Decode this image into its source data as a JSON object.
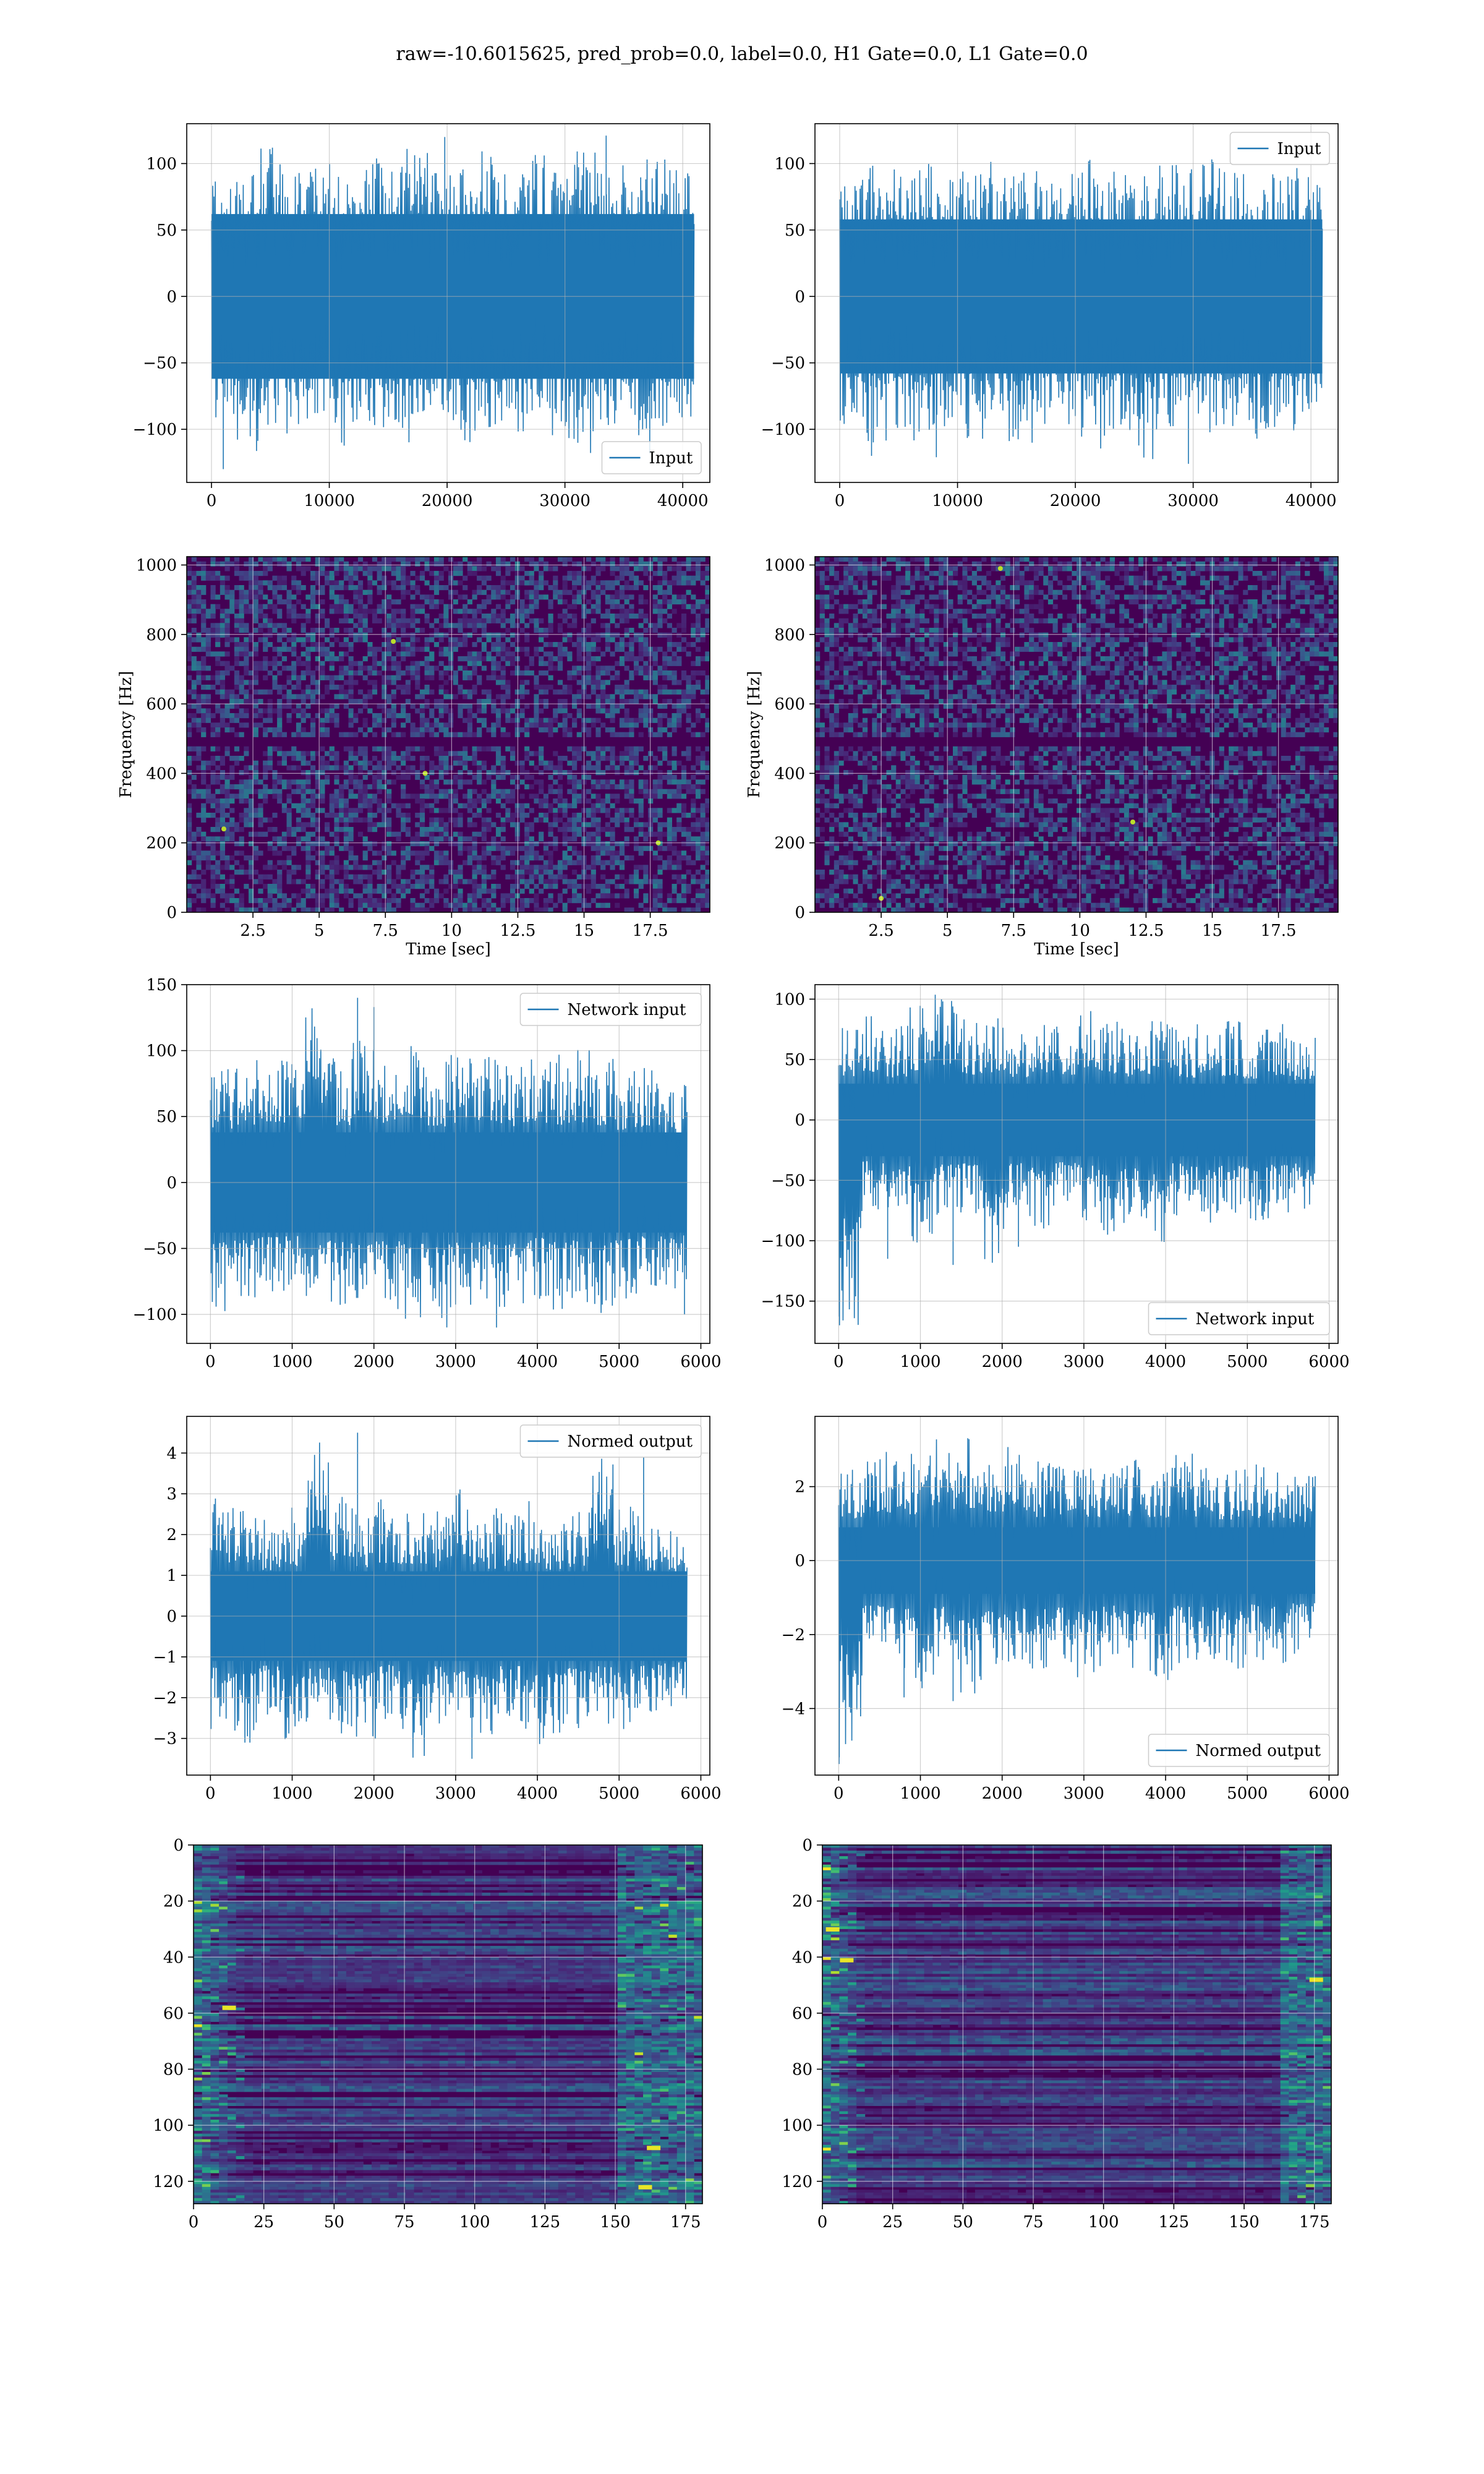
{
  "figure": {
    "suptitle": "raw=-10.6015625, pred_prob=0.0, label=0.0, H1 Gate=0.0, L1 Gate=0.0"
  },
  "colors": {
    "line": "#1f77b4",
    "grid": "#b0b0b0",
    "axes_edge": "#000000",
    "viridis_dark": "#440154",
    "viridis_mid": "#21918c",
    "viridis_light": "#fde725"
  },
  "chart_data": [
    {
      "id": "h1-input",
      "type": "line",
      "title": "",
      "xlabel": "",
      "ylabel": "",
      "xlim": [
        -2100,
        42300
      ],
      "ylim": [
        -140,
        130
      ],
      "xticks": [
        0,
        10000,
        20000,
        30000,
        40000
      ],
      "yticks": [
        -100,
        -50,
        0,
        50,
        100
      ],
      "grid": true,
      "legend_position": "lower right",
      "series": [
        {
          "name": "Input",
          "x_range": [
            0,
            40960
          ],
          "n_points": 40960,
          "band": [
            -62,
            62
          ],
          "envelope_max": [
            88,
            98,
            112,
            95,
            104,
            93,
            110,
            99,
            118,
            95,
            102,
            113,
            97,
            108,
            94,
            120,
            99,
            105,
            115,
            98
          ],
          "envelope_min": [
            -92,
            -120,
            -100,
            -108,
            -90,
            -114,
            -97,
            -105,
            -111,
            -95,
            -110,
            -99,
            -104,
            -94,
            -108,
            -118,
            -97,
            -106,
            -100,
            -93
          ],
          "outliers": [
            [
              1000,
              -130
            ],
            [
              19800,
              120
            ],
            [
              33500,
              121
            ],
            [
              37200,
              -118
            ]
          ]
        }
      ]
    },
    {
      "id": "l1-input",
      "type": "line",
      "title": "",
      "xlabel": "",
      "ylabel": "",
      "xlim": [
        -2100,
        42300
      ],
      "ylim": [
        -140,
        130
      ],
      "xticks": [
        0,
        10000,
        20000,
        30000,
        40000
      ],
      "yticks": [
        -100,
        -50,
        0,
        50,
        100
      ],
      "grid": true,
      "legend_position": "upper right",
      "series": [
        {
          "name": "Input",
          "x_range": [
            0,
            40960
          ],
          "n_points": 40960,
          "band": [
            -58,
            58
          ],
          "envelope_max": [
            92,
            100,
            96,
            104,
            90,
            98,
            103,
            95,
            100,
            94,
            106,
            99,
            93,
            101,
            97,
            104,
            96,
            92,
            98,
            90
          ],
          "envelope_min": [
            -96,
            -110,
            -100,
            -118,
            -98,
            -108,
            -95,
            -112,
            -101,
            -97,
            -115,
            -104,
            -123,
            -110,
            -99,
            -105,
            -98,
            -108,
            -101,
            -95
          ],
          "outliers": [
            [
              2700,
              -120
            ],
            [
              8200,
              -121
            ],
            [
              29600,
              -126
            ]
          ]
        }
      ]
    },
    {
      "id": "h1-spectrogram",
      "type": "heatmap",
      "title": "",
      "xlabel": "Time [sec]",
      "ylabel": "Frequency [Hz]",
      "xlim": [
        0.0,
        19.75
      ],
      "ylim": [
        0,
        1024
      ],
      "xticks": [
        2.5,
        5.0,
        7.5,
        10.0,
        12.5,
        15.0,
        17.5
      ],
      "yticks": [
        0,
        200,
        400,
        600,
        800,
        1000
      ],
      "grid": true,
      "colormap": "viridis",
      "features": {
        "dark_band_hz": [
          475,
          505
        ],
        "hot_spots": [
          [
            7.8,
            780
          ],
          [
            17.8,
            200
          ],
          [
            9.0,
            400
          ],
          [
            1.4,
            240
          ]
        ]
      }
    },
    {
      "id": "l1-spectrogram",
      "type": "heatmap",
      "title": "",
      "xlabel": "Time [sec]",
      "ylabel": "Frequency [Hz]",
      "xlim": [
        0.0,
        19.75
      ],
      "ylim": [
        0,
        1024
      ],
      "xticks": [
        2.5,
        5.0,
        7.5,
        10.0,
        12.5,
        15.0,
        17.5
      ],
      "yticks": [
        0,
        200,
        400,
        600,
        800,
        1000
      ],
      "grid": true,
      "colormap": "viridis",
      "features": {
        "dark_band_hz": [
          475,
          505
        ],
        "hot_spots": [
          [
            2.5,
            40
          ],
          [
            7.0,
            990
          ],
          [
            12.0,
            260
          ]
        ]
      }
    },
    {
      "id": "h1-network-input",
      "type": "line",
      "title": "",
      "xlabel": "",
      "ylabel": "",
      "xlim": [
        -290,
        6110
      ],
      "ylim": [
        -122,
        150
      ],
      "xticks": [
        0,
        1000,
        2000,
        3000,
        4000,
        5000,
        6000
      ],
      "yticks": [
        -100,
        -50,
        0,
        50,
        100,
        150
      ],
      "grid": true,
      "legend_position": "upper right",
      "series": [
        {
          "name": "Network input",
          "x_range": [
            0,
            5830
          ],
          "n_points": 5830,
          "band": [
            -38,
            38
          ],
          "envelope_max": [
            88,
            95,
            102,
            98,
            140,
            96,
            108,
            99,
            104,
            92,
            97,
            106,
            94,
            100,
            97,
            101,
            95,
            86,
            92,
            74
          ],
          "envelope_min": [
            -100,
            -92,
            -90,
            -88,
            -95,
            -96,
            -93,
            -99,
            -105,
            -110,
            -98,
            -95,
            -104,
            -92,
            -100,
            -95,
            -102,
            -90,
            -88,
            -84
          ],
          "outliers": [
            [
              1800,
              140
            ],
            [
              2000,
              133
            ],
            [
              3500,
              -110
            ],
            [
              5800,
              -100
            ]
          ]
        }
      ]
    },
    {
      "id": "l1-network-input",
      "type": "line",
      "title": "",
      "xlabel": "",
      "ylabel": "",
      "xlim": [
        -290,
        6110
      ],
      "ylim": [
        -185,
        112
      ],
      "xticks": [
        0,
        1000,
        2000,
        3000,
        4000,
        5000,
        6000
      ],
      "yticks": [
        -150,
        -100,
        -50,
        0,
        50,
        100
      ],
      "grid": true,
      "legend_position": "lower right",
      "series": [
        {
          "name": "Network input",
          "x_range": [
            0,
            5830
          ],
          "n_points": 5830,
          "band": [
            -30,
            30
          ],
          "envelope_max": [
            80,
            90,
            78,
            95,
            108,
            85,
            88,
            76,
            90,
            82,
            95,
            84,
            80,
            86,
            78,
            90,
            82,
            75,
            80,
            70
          ],
          "envelope_min": [
            -170,
            -75,
            -85,
            -118,
            -82,
            -78,
            -122,
            -80,
            -90,
            -78,
            -84,
            -95,
            -82,
            -105,
            -80,
            -86,
            -82,
            -90,
            -84,
            -80
          ],
          "outliers": [
            [
              10,
              -170
            ],
            [
              600,
              -115
            ],
            [
              1400,
              -120
            ],
            [
              2200,
              -105
            ]
          ]
        }
      ]
    },
    {
      "id": "h1-normed-output",
      "type": "line",
      "title": "",
      "xlabel": "",
      "ylabel": "",
      "xlim": [
        -290,
        6110
      ],
      "ylim": [
        -3.9,
        4.9
      ],
      "xticks": [
        0,
        1000,
        2000,
        3000,
        4000,
        5000,
        6000
      ],
      "yticks": [
        -3,
        -2,
        -1,
        0,
        1,
        2,
        3,
        4
      ],
      "grid": true,
      "legend_position": "upper right",
      "series": [
        {
          "name": "Normed output",
          "x_range": [
            0,
            5830
          ],
          "n_points": 5830,
          "band": [
            -1.1,
            1.1
          ],
          "envelope_max": [
            2.9,
            2.6,
            2.4,
            2.7,
            4.5,
            3.1,
            2.6,
            2.9,
            2.8,
            2.6,
            3.2,
            2.5,
            2.7,
            2.9,
            2.4,
            2.6,
            3.9,
            2.7,
            2.4,
            2.2
          ],
          "envelope_min": [
            -2.8,
            -3.2,
            -2.6,
            -3.3,
            -2.7,
            -2.9,
            -3.1,
            -2.6,
            -3.5,
            -2.7,
            -2.9,
            -3.0,
            -2.6,
            -3.3,
            -3.2,
            -2.8,
            -2.7,
            -2.9,
            -2.6,
            -2.4
          ],
          "outliers": [
            [
              1800,
              4.5
            ],
            [
              5300,
              3.9
            ],
            [
              3200,
              -3.5
            ]
          ]
        }
      ]
    },
    {
      "id": "l1-normed-output",
      "type": "line",
      "title": "",
      "xlabel": "",
      "ylabel": "",
      "xlim": [
        -290,
        6110
      ],
      "ylim": [
        -5.8,
        3.9
      ],
      "xticks": [
        0,
        1000,
        2000,
        3000,
        4000,
        5000,
        6000
      ],
      "yticks": [
        -4,
        -2,
        0,
        2
      ],
      "grid": true,
      "legend_position": "lower right",
      "series": [
        {
          "name": "Normed output",
          "x_range": [
            0,
            5830
          ],
          "n_points": 5830,
          "band": [
            -0.9,
            0.9
          ],
          "envelope_max": [
            2.6,
            2.8,
            3.0,
            2.9,
            3.3,
            3.4,
            2.8,
            3.1,
            2.7,
            2.9,
            2.6,
            3.0,
            2.8,
            2.6,
            2.9,
            2.7,
            2.5,
            2.6,
            2.4,
            2.3
          ],
          "envelope_min": [
            -5.5,
            -2.8,
            -3.0,
            -3.7,
            -2.9,
            -3.8,
            -3.1,
            -2.8,
            -3.0,
            -2.9,
            -3.2,
            -2.7,
            -3.1,
            -3.3,
            -2.8,
            -2.9,
            -3.0,
            -2.7,
            -2.9,
            -2.6
          ],
          "outliers": [
            [
              5,
              -5.5
            ],
            [
              800,
              -3.7
            ],
            [
              1400,
              -3.8
            ]
          ]
        }
      ]
    },
    {
      "id": "h1-feature-map",
      "type": "heatmap",
      "title": "",
      "xlabel": "",
      "ylabel": "",
      "xlim": [
        0,
        181
      ],
      "ylim": [
        128,
        0
      ],
      "xticks": [
        0,
        25,
        50,
        75,
        100,
        125,
        150,
        175
      ],
      "yticks": [
        0,
        20,
        40,
        60,
        80,
        100,
        120
      ],
      "grid": true,
      "colormap": "viridis",
      "n_rows": 128,
      "n_cols": 181,
      "features": {
        "bright_left_cols": [
          0,
          18
        ],
        "bright_right_cols": [
          150,
          181
        ],
        "hot_spots": [
          [
            160,
            122
          ],
          [
            12,
            58
          ],
          [
            163,
            108
          ]
        ]
      }
    },
    {
      "id": "l1-feature-map",
      "type": "heatmap",
      "title": "",
      "xlabel": "",
      "ylabel": "",
      "xlim": [
        0,
        181
      ],
      "ylim": [
        128,
        0
      ],
      "xticks": [
        0,
        25,
        50,
        75,
        100,
        125,
        150,
        175
      ],
      "yticks": [
        0,
        20,
        40,
        60,
        80,
        100,
        120
      ],
      "grid": true,
      "colormap": "viridis",
      "n_rows": 128,
      "n_cols": 181,
      "features": {
        "bright_left_cols": [
          0,
          14
        ],
        "bright_right_cols": [
          162,
          181
        ],
        "hot_spots": [
          [
            3,
            30
          ],
          [
            8,
            41
          ],
          [
            175,
            48
          ]
        ]
      }
    }
  ]
}
